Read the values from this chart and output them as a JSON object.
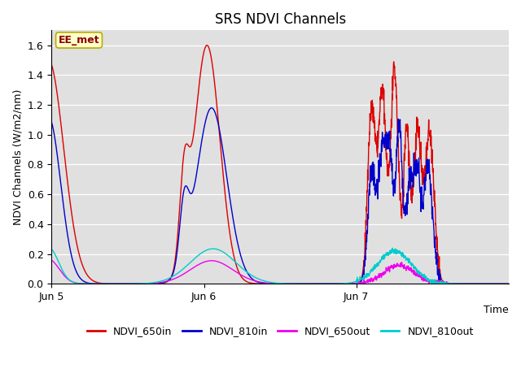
{
  "title": "SRS NDVI Channels",
  "ylabel": "NDVI Channels (W/m2/nm)",
  "xlabel": "Time",
  "ylim": [
    0.0,
    1.7
  ],
  "yticks": [
    0.0,
    0.2,
    0.4,
    0.6,
    0.8,
    1.0,
    1.2,
    1.4,
    1.6
  ],
  "xtick_labels": [
    "Jun 5",
    "Jun 6",
    "Jun 7"
  ],
  "annotation": "EE_met",
  "colors": {
    "NDVI_650in": "#dd0000",
    "NDVI_810in": "#0000cc",
    "NDVI_650out": "#ee00ee",
    "NDVI_810out": "#00cccc"
  },
  "bg_color": "#e0e0e0",
  "linewidth": 1.0,
  "title_fontsize": 12
}
